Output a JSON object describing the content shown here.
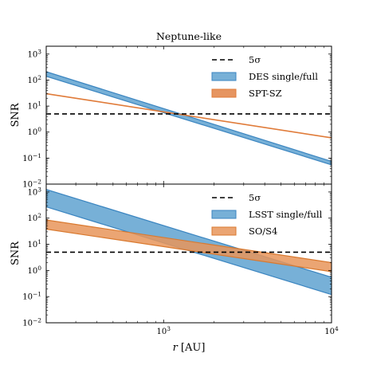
{
  "chart_data": [
    {
      "type": "area",
      "title": "Neptune-like",
      "xlabel": "",
      "ylabel": "SNR",
      "x_scale": "log",
      "y_scale": "log",
      "xlim": [
        200,
        10000
      ],
      "ylim": [
        0.01,
        2000
      ],
      "yticks": [
        0.01,
        0.1,
        1,
        10,
        100,
        1000
      ],
      "ytick_labels": [
        {
          "base": "10",
          "exp": "−2"
        },
        {
          "base": "10",
          "exp": "−1"
        },
        {
          "base": "10",
          "exp": "0"
        },
        {
          "base": "10",
          "exp": "1"
        },
        {
          "base": "10",
          "exp": "2"
        },
        {
          "base": "10",
          "exp": "3"
        }
      ],
      "grid": false,
      "legend_position": "upper-right",
      "threshold": {
        "name": "5σ",
        "value": 5,
        "style": "dashed",
        "color": "#000000"
      },
      "series": [
        {
          "name": "DES single/full",
          "kind": "band",
          "color": "#5fa2d0",
          "edge_color": "#3b85c0",
          "x": [
            200,
            10000
          ],
          "lower": [
            140,
            0.055
          ],
          "upper": [
            210,
            0.075
          ]
        },
        {
          "name": "SPT-SZ",
          "kind": "line",
          "color": "#e07b39",
          "x": [
            200,
            10000
          ],
          "y": [
            30,
            0.6
          ]
        }
      ]
    },
    {
      "type": "area",
      "title": "",
      "xlabel": "r [AU]",
      "ylabel": "SNR",
      "x_scale": "log",
      "y_scale": "log",
      "xlim": [
        200,
        10000
      ],
      "ylim": [
        0.01,
        2000
      ],
      "xticks": [
        1000,
        10000
      ],
      "xtick_labels": [
        {
          "base": "10",
          "exp": "3"
        },
        {
          "base": "10",
          "exp": "4"
        }
      ],
      "yticks": [
        0.01,
        0.1,
        1,
        10,
        100,
        1000
      ],
      "ytick_labels": [
        {
          "base": "10",
          "exp": "−2"
        },
        {
          "base": "10",
          "exp": "−1"
        },
        {
          "base": "10",
          "exp": "0"
        },
        {
          "base": "10",
          "exp": "1"
        },
        {
          "base": "10",
          "exp": "2"
        },
        {
          "base": "10",
          "exp": "3"
        }
      ],
      "grid": false,
      "legend_position": "upper-right",
      "threshold": {
        "name": "5σ",
        "value": 5,
        "style": "dashed",
        "color": "#000000"
      },
      "series": [
        {
          "name": "LSST single/full",
          "kind": "band",
          "color": "#5fa2d0",
          "edge_color": "#3b85c0",
          "x": [
            200,
            10000
          ],
          "lower": [
            270,
            0.12
          ],
          "upper": [
            1250,
            0.55
          ]
        },
        {
          "name": "SO/S4",
          "kind": "band",
          "color": "#e8955a",
          "edge_color": "#d9792f",
          "x": [
            200,
            10000
          ],
          "lower": [
            38,
            0.9
          ],
          "upper": [
            85,
            2.0
          ]
        }
      ]
    }
  ]
}
